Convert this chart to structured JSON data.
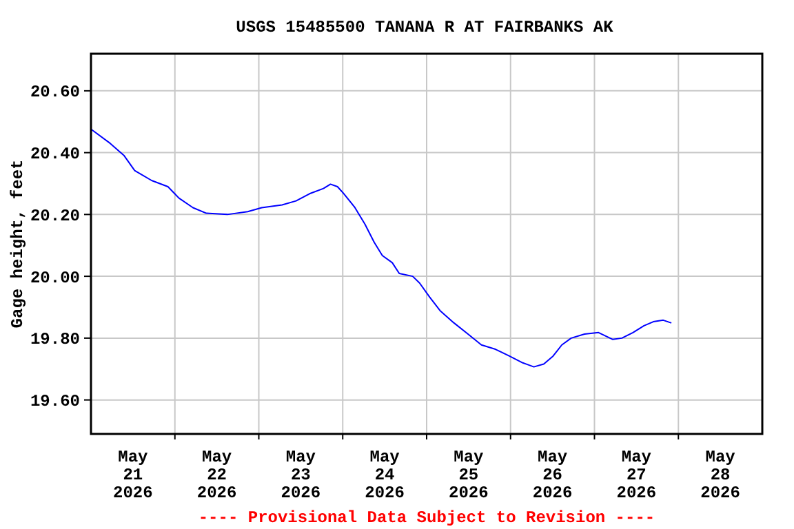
{
  "chart_data": {
    "type": "line",
    "title": "USGS 15485500 TANANA R AT FAIRBANKS AK",
    "ylabel": "Gage height, feet",
    "annotations": [
      "---- Provisional Data Subject to Revision ----"
    ],
    "x": [
      "2026-05-21T00:00",
      "2026-05-21T05:30",
      "2026-05-21T09:30",
      "2026-05-21T12:30",
      "2026-05-21T17:20",
      "2026-05-21T22:00",
      "2026-05-22T01:10",
      "2026-05-22T05:10",
      "2026-05-22T09:00",
      "2026-05-22T15:00",
      "2026-05-22T20:50",
      "2026-05-23T00:50",
      "2026-05-23T06:40",
      "2026-05-23T10:40",
      "2026-05-23T14:30",
      "2026-05-23T18:30",
      "2026-05-23T20:30",
      "2026-05-23T22:30",
      "2026-05-24T00:20",
      "2026-05-24T03:30",
      "2026-05-24T06:20",
      "2026-05-24T09:00",
      "2026-05-24T11:20",
      "2026-05-24T14:10",
      "2026-05-24T16:10",
      "2026-05-24T20:00",
      "2026-05-24T22:00",
      "2026-05-25T00:50",
      "2026-05-25T03:50",
      "2026-05-25T07:50",
      "2026-05-25T11:50",
      "2026-05-25T15:40",
      "2026-05-25T19:40",
      "2026-05-25T23:40",
      "2026-05-26T03:30",
      "2026-05-26T06:40",
      "2026-05-26T09:30",
      "2026-05-26T12:10",
      "2026-05-26T14:40",
      "2026-05-26T17:20",
      "2026-05-26T21:10",
      "2026-05-27T01:10",
      "2026-05-27T05:10",
      "2026-05-27T07:50",
      "2026-05-27T11:00",
      "2026-05-27T14:10",
      "2026-05-27T16:50",
      "2026-05-27T19:40",
      "2026-05-27T22:00"
    ],
    "series": [
      {
        "color": "#0000ff",
        "values": [
          20.476,
          20.43,
          20.39,
          20.342,
          20.31,
          20.29,
          20.253,
          20.222,
          20.204,
          20.2,
          20.209,
          20.222,
          20.231,
          20.244,
          20.267,
          20.284,
          20.298,
          20.29,
          20.267,
          20.222,
          20.169,
          20.11,
          20.067,
          20.044,
          20.009,
          20.0,
          19.978,
          19.933,
          19.889,
          19.849,
          19.813,
          19.778,
          19.764,
          19.742,
          19.72,
          19.707,
          19.716,
          19.742,
          19.778,
          19.8,
          19.813,
          19.818,
          19.796,
          19.8,
          19.818,
          19.84,
          19.853,
          19.858,
          19.849
        ]
      }
    ],
    "xlim": [
      "2026-05-21T00:00",
      "2026-05-29T00:00"
    ],
    "xticks": [
      {
        "value": "2026-05-21T12:00",
        "label": "May\n21\n2026"
      },
      {
        "value": "2026-05-22T00:00",
        "label": null
      },
      {
        "value": "2026-05-22T12:00",
        "label": "May\n22\n2026"
      },
      {
        "value": "2026-05-23T00:00",
        "label": null
      },
      {
        "value": "2026-05-23T12:00",
        "label": "May\n23\n2026"
      },
      {
        "value": "2026-05-24T00:00",
        "label": null
      },
      {
        "value": "2026-05-24T12:00",
        "label": "May\n24\n2026"
      },
      {
        "value": "2026-05-25T00:00",
        "label": null
      },
      {
        "value": "2026-05-25T12:00",
        "label": "May\n25\n2026"
      },
      {
        "value": "2026-05-26T00:00",
        "label": null
      },
      {
        "value": "2026-05-26T12:00",
        "label": "May\n26\n2026"
      },
      {
        "value": "2026-05-27T00:00",
        "label": null
      },
      {
        "value": "2026-05-27T12:00",
        "label": "May\n27\n2026"
      },
      {
        "value": "2026-05-28T00:00",
        "label": null
      },
      {
        "value": "2026-05-28T12:00",
        "label": "May\n28\n2026"
      }
    ],
    "ylim": [
      19.49,
      20.72
    ],
    "yticks": [
      {
        "value": 19.6,
        "label": "19.60"
      },
      {
        "value": 19.8,
        "label": "19.80"
      },
      {
        "value": 20.0,
        "label": "20.00"
      },
      {
        "value": 20.2,
        "label": "20.20"
      },
      {
        "value": 20.4,
        "label": "20.40"
      },
      {
        "value": 20.6,
        "label": "20.60"
      }
    ],
    "grid": true,
    "marker": "none",
    "line_style": "solid"
  }
}
